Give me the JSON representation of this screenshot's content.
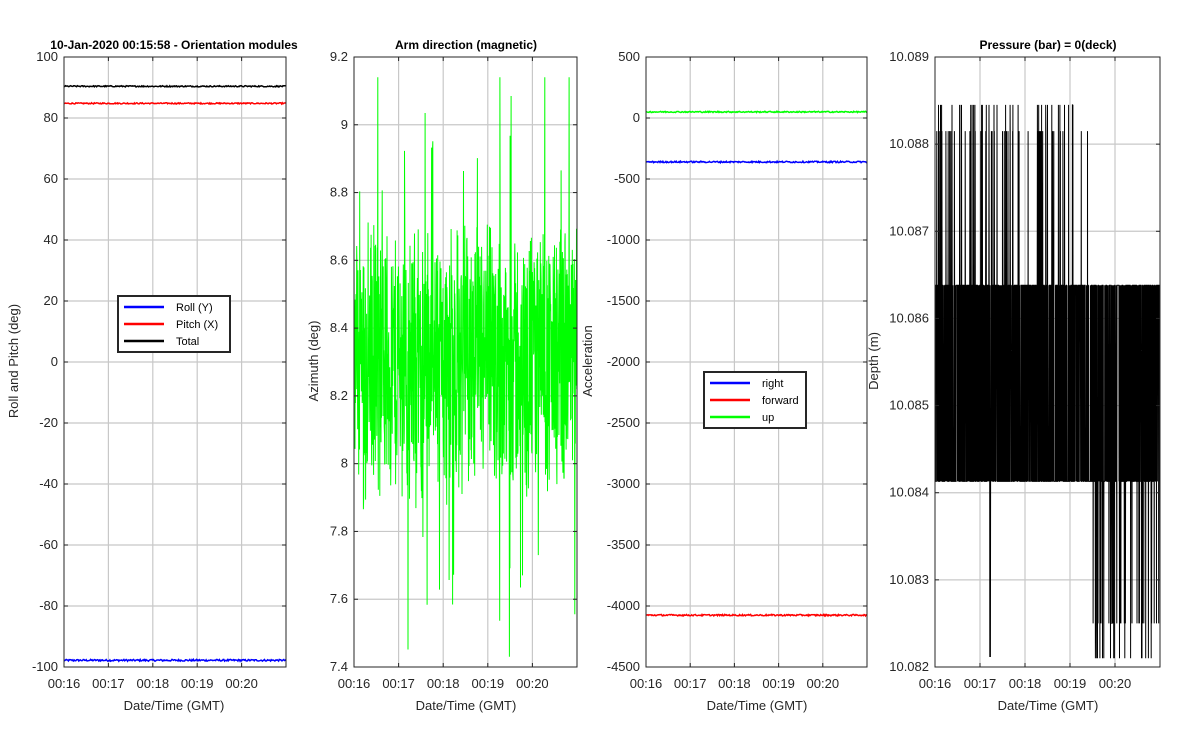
{
  "figure": {
    "background": "#ffffff",
    "grid_color": "#c8c8c8",
    "axis_color": "#262626"
  },
  "chart_data": [
    {
      "type": "line",
      "title": "10-Jan-2020 00:15:58 - Orientation modules",
      "xlabel": "Date/Time (GMT)",
      "ylabel": "Roll and Pitch (deg)",
      "xlim": [
        0,
        5
      ],
      "ylim": [
        -100,
        100
      ],
      "yticks": [
        100,
        80,
        60,
        40,
        20,
        0,
        -20,
        -40,
        -60,
        -80,
        -100
      ],
      "xticks": [
        "00:16",
        "00:17",
        "00:18",
        "00:19",
        "00:20"
      ],
      "grid": true,
      "legend": {
        "placement": "center",
        "entries": [
          "Roll (Y)",
          "Pitch (X)",
          "Total"
        ]
      },
      "series": [
        {
          "name": "Roll (Y)",
          "color": "#0000ff",
          "x": [
            0,
            4.5
          ],
          "values": [
            -97.8,
            -97.8
          ],
          "noise": 0.3
        },
        {
          "name": "Pitch (X)",
          "color": "#ff0000",
          "x": [
            0,
            4.5
          ],
          "values": [
            84.8,
            84.8
          ],
          "noise": 0.2
        },
        {
          "name": "Total",
          "color": "#000000",
          "x": [
            0,
            4.5
          ],
          "values": [
            90.4,
            90.4
          ],
          "noise": 0.2
        }
      ]
    },
    {
      "type": "line",
      "title": "Arm direction (magnetic)",
      "xlabel": "Date/Time (GMT)",
      "ylabel": "Azimuth (deg)",
      "xlim": [
        0,
        5
      ],
      "ylim": [
        7.4,
        9.2
      ],
      "yticks": [
        9.2,
        9,
        8.8,
        8.6,
        8.4,
        8.2,
        8,
        7.8,
        7.6,
        7.4
      ],
      "xticks": [
        "00:16",
        "00:17",
        "00:18",
        "00:19",
        "00:20"
      ],
      "grid": true,
      "series": [
        {
          "color": "#00ff00",
          "x": [
            0,
            4.5
          ],
          "values": [
            8.3,
            8.3
          ],
          "min": 7.43,
          "max": 9.14,
          "noise": 0.45
        }
      ]
    },
    {
      "type": "line",
      "title": "",
      "xlabel": "Date/Time (GMT)",
      "ylabel": "Acceleration",
      "xlim": [
        0,
        5
      ],
      "ylim": [
        -4500,
        500
      ],
      "yticks": [
        500,
        0,
        -500,
        -1000,
        -1500,
        -2000,
        -2500,
        -3000,
        -3500,
        -4000,
        -4500
      ],
      "xticks": [
        "00:16",
        "00:17",
        "00:18",
        "00:19",
        "00:20"
      ],
      "grid": true,
      "legend": {
        "placement": "center-right",
        "entries": [
          "right",
          "forward",
          "up"
        ]
      },
      "series": [
        {
          "name": "right",
          "color": "#0000ff",
          "x": [
            0,
            4.5
          ],
          "values": [
            -360,
            -360
          ],
          "noise": 6
        },
        {
          "name": "forward",
          "color": "#ff0000",
          "x": [
            0,
            4.5
          ],
          "values": [
            -4075,
            -4075
          ],
          "noise": 6
        },
        {
          "name": "up",
          "color": "#00ff00",
          "x": [
            0,
            4.5
          ],
          "values": [
            50,
            50
          ],
          "noise": 5
        }
      ]
    },
    {
      "type": "line",
      "title": "Pressure (bar) = 0(deck)",
      "xlabel": "Date/Time (GMT)",
      "ylabel": "Depth (m)",
      "xlim": [
        0,
        5
      ],
      "ylim": [
        10.082,
        10.089
      ],
      "yticks": [
        10.089,
        10.088,
        10.087,
        10.086,
        10.085,
        10.084,
        10.083,
        10.082
      ],
      "xticks": [
        "00:16",
        "00:17",
        "00:18",
        "00:19",
        "00:20"
      ],
      "grid": true,
      "series": [
        {
          "color": "#000000",
          "x": [
            0,
            4.5
          ],
          "values": [
            10.0853,
            10.0853
          ],
          "levels": [
            10.08413,
            10.08638
          ],
          "upper_spikes": [
            10.08815,
            10.08845
          ],
          "lower_spikes": [
            10.0821,
            10.0825
          ],
          "min": 10.08212,
          "max": 10.08845
        }
      ]
    }
  ]
}
